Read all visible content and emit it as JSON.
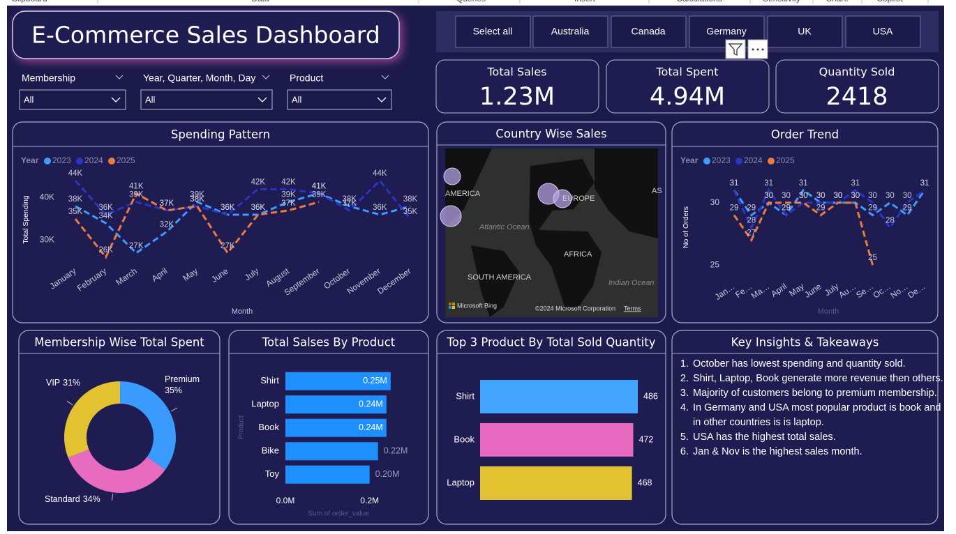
{
  "ribbon": [
    "Clipboard",
    "Data",
    "Queries",
    "Insert",
    "Calculations",
    "Sensitivity",
    "Share",
    "Copilot"
  ],
  "header": {
    "title": "E-Commerce Sales Dashboard"
  },
  "slicers": [
    {
      "label": "Membership",
      "value": "All"
    },
    {
      "label": "Year, Quarter, Month, Day",
      "value": "All"
    },
    {
      "label": "Product",
      "value": "All"
    }
  ],
  "country_filter": [
    "Select all",
    "Australia",
    "Canada",
    "Germany",
    "UK",
    "USA"
  ],
  "cards": [
    {
      "label": "Total Sales",
      "value": "1.23M"
    },
    {
      "label": "Total Spent",
      "value": "4.94M"
    },
    {
      "label": "Quantity Sold",
      "value": "2418"
    }
  ],
  "map": {
    "title": "Country Wise Sales",
    "labels": [
      "AMERICA",
      "EUROPE",
      "Atlantic Ocean",
      "AFRICA",
      "SOUTH AMERICA",
      "Indian Ocean",
      "AS"
    ],
    "attribution": "Microsoft Bing",
    "copyright": "©2024 Microsoft Corporation",
    "terms": "Terms"
  },
  "insights": {
    "title": "Key Insights & Takeaways",
    "items": [
      "October has lowest spending and  quantity sold.",
      "Shirt, Laptop, Book generate more revenue then others.",
      "Majority of customers belong to premium membership.",
      "In Germany and USA most popular product is book and in other countries is is laptop.",
      "USA has the highest total sales.",
      "Jan & Nov is the highest sales month."
    ]
  },
  "chart_data": [
    {
      "type": "line",
      "title": "Spending Pattern",
      "legend_title": "Year",
      "x_label": "Month",
      "y_label": "Total Spending",
      "categories": [
        "January",
        "February",
        "March",
        "April",
        "May",
        "June",
        "July",
        "August",
        "September",
        "October",
        "November",
        "December"
      ],
      "ylim": [
        25000,
        46000
      ],
      "yticks": [
        {
          "value": 30000,
          "label": "30K"
        },
        {
          "value": 40000,
          "label": "40K"
        }
      ],
      "series": [
        {
          "name": "2023",
          "color": "#3d9cff",
          "values": [
            38000,
            34000,
            27000,
            32000,
            39000,
            36000,
            36000,
            39000,
            41000,
            38000,
            36000,
            38000
          ],
          "value_labels": [
            "38K",
            "34K",
            "27K",
            "32K",
            "39K",
            "36K",
            "36K",
            "39K",
            "41K",
            "38K",
            "36K",
            "38K"
          ]
        },
        {
          "name": "2024",
          "color": "#2a35c9",
          "values": [
            44000,
            36000,
            39000,
            37000,
            38000,
            36000,
            42000,
            42000,
            41000,
            37000,
            44000,
            35000
          ],
          "value_labels": [
            "44K",
            "36K",
            "39K",
            "37K",
            "38K",
            "36K",
            "42K",
            "42K",
            "41K",
            "37K",
            "44K",
            "35K"
          ]
        },
        {
          "name": "2025",
          "color": "#f07a3c",
          "values": [
            35000,
            26000,
            41000,
            37000,
            38000,
            27000,
            36000,
            37000,
            39000,
            null,
            null,
            null
          ],
          "value_labels": [
            "35K",
            "26K",
            "41K",
            "37K",
            "38K",
            "27K",
            "36K",
            "37K",
            "39K",
            null,
            null,
            null
          ]
        }
      ]
    },
    {
      "type": "line",
      "title": "Order Trend",
      "legend_title": "Year",
      "x_label": "Month",
      "y_label": "No of Orders",
      "categories": [
        "Jan…",
        "Fe…",
        "Ma…",
        "April",
        "May",
        "June",
        "July",
        "Au…",
        "Se…",
        "Oc…",
        "No…",
        "De…"
      ],
      "ylim": [
        24,
        32
      ],
      "yticks": [
        25,
        30
      ],
      "series": [
        {
          "name": "2023",
          "color": "#3d9cff",
          "values": [
            31,
            29,
            30,
            29,
            31,
            30,
            30,
            30,
            29,
            30,
            29,
            31
          ]
        },
        {
          "name": "2024",
          "color": "#2a35c9",
          "values": [
            31,
            28,
            31,
            29,
            30,
            30,
            30,
            31,
            30,
            28,
            30,
            31
          ]
        },
        {
          "name": "2025",
          "color": "#f07a3c",
          "values": [
            29,
            27,
            30,
            30,
            30,
            29,
            30,
            30,
            25,
            null,
            null,
            null
          ]
        }
      ]
    },
    {
      "type": "donut",
      "title": "Membership Wise Total Spent",
      "categories": [
        "Premium",
        "Standard",
        "VIP"
      ],
      "values": [
        35,
        34,
        31
      ],
      "value_labels": [
        "35%",
        "34%",
        "31%"
      ],
      "colors": [
        "#3a9bff",
        "#e96bbf",
        "#e3c232"
      ]
    },
    {
      "type": "hbar",
      "title": "Total Salses By Product",
      "x_label": "Sum of order_value",
      "y_label": "Product",
      "categories": [
        "Shirt",
        "Laptop",
        "Book",
        "Bike",
        "Toy"
      ],
      "values": [
        250000,
        240000,
        240000,
        220000,
        200000
      ],
      "value_labels": [
        "0.25M",
        "0.24M",
        "0.24M",
        "0.22M",
        "0.20M"
      ],
      "color": "#1e8fff",
      "xlim": [
        0,
        300000
      ],
      "xticks": [
        {
          "value": 0,
          "label": "0.0M"
        },
        {
          "value": 200000,
          "label": "0.2M"
        }
      ]
    },
    {
      "type": "hbar",
      "title": "Top 3 Product By Total Sold Quantity",
      "categories": [
        "Shirt",
        "Book",
        "Laptop"
      ],
      "values": [
        486,
        472,
        468
      ],
      "colors": [
        "#42a5ff",
        "#e868c0",
        "#e3c232"
      ]
    }
  ]
}
